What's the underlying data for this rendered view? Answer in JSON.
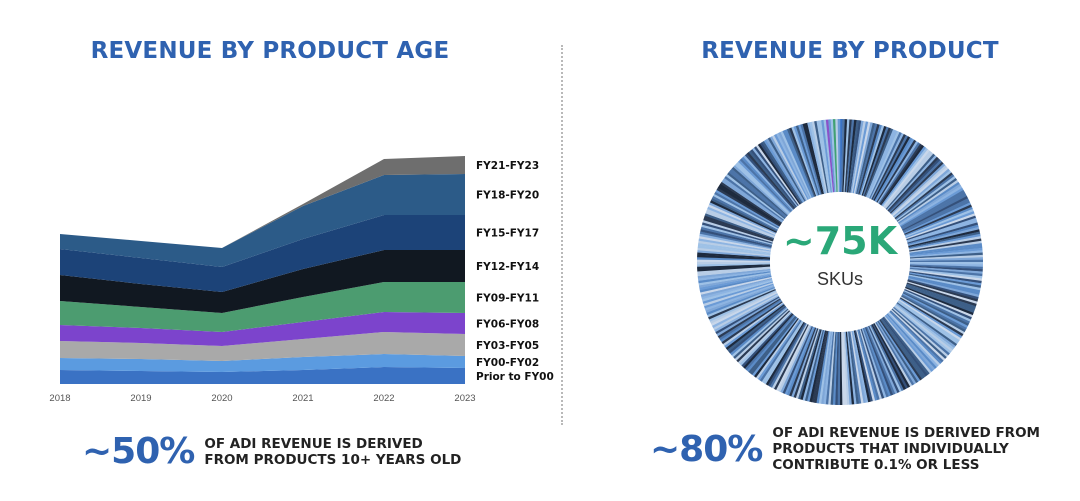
{
  "left_panel": {
    "title": "REVENUE BY PRODUCT AGE",
    "stat_value": "~50%",
    "stat_lines": [
      "OF ADI REVENUE IS DERIVED",
      "FROM PRODUCTS 10+ YEARS OLD"
    ]
  },
  "right_panel": {
    "title": "REVENUE BY PRODUCT",
    "center_value": "~75K",
    "center_unit": "SKUs",
    "stat_value": "~80%",
    "stat_lines": [
      "OF ADI REVENUE IS DERIVED FROM",
      "PRODUCTS THAT INDIVIDUALLY",
      "CONTRIBUTE 0.1% OR LESS"
    ]
  },
  "chart_data": [
    {
      "type": "area",
      "stacked": true,
      "title": "REVENUE BY PRODUCT AGE",
      "x": [
        "2018",
        "2019",
        "2020",
        "2021",
        "2022",
        "2023"
      ],
      "y_axis_shown": false,
      "legend_placement": "right, labels aligned to series",
      "series": [
        {
          "name": "Prior to FY00",
          "color": "#3a72c4",
          "values": [
            14,
            13,
            12,
            14,
            17,
            16
          ]
        },
        {
          "name": "FY00-FY02",
          "color": "#5b9be0",
          "values": [
            12,
            12,
            11,
            13,
            13,
            12
          ]
        },
        {
          "name": "FY03-FY05",
          "color": "#a9a9a9",
          "values": [
            17,
            16,
            15,
            18,
            22,
            22
          ]
        },
        {
          "name": "FY06-FY08",
          "color": "#7c44cc",
          "values": [
            16,
            15,
            14,
            17,
            20,
            21
          ]
        },
        {
          "name": "FY09-FY11",
          "color": "#4c9c70",
          "values": [
            24,
            21,
            19,
            25,
            30,
            31
          ]
        },
        {
          "name": "FY12-FY14",
          "color": "#111821",
          "values": [
            26,
            23,
            21,
            28,
            32,
            32
          ]
        },
        {
          "name": "FY15-FY17",
          "color": "#1c4378",
          "values": [
            26,
            26,
            25,
            30,
            35,
            35
          ]
        },
        {
          "name": "FY18-FY20",
          "color": "#2c5b88",
          "values": [
            15,
            17,
            19,
            33,
            40,
            41
          ]
        },
        {
          "name": "FY21-FY23",
          "color": "#6e6e6e",
          "values": [
            0,
            0,
            0,
            2,
            16,
            18
          ]
        }
      ]
    },
    {
      "type": "pie",
      "variant": "donut",
      "title": "REVENUE BY PRODUCT",
      "center_value": "~75K",
      "center_unit": "SKUs",
      "slice_count_shown": 380,
      "palette": [
        "#3d5f88",
        "#9ec1e6",
        "#2b3a52",
        "#6b9bd6",
        "#b8cde6",
        "#4c74a8",
        "#1d2a3e",
        "#7fa7d8",
        "#5a8bc7",
        "#c9d7ea",
        "#34507a",
        "#8db4e2"
      ],
      "accent_slices": [
        {
          "position": "top",
          "color": "#8a52c9"
        },
        {
          "position": "top",
          "color": "#41a173"
        },
        {
          "position": "top",
          "color": "#3a72c4"
        }
      ]
    }
  ]
}
